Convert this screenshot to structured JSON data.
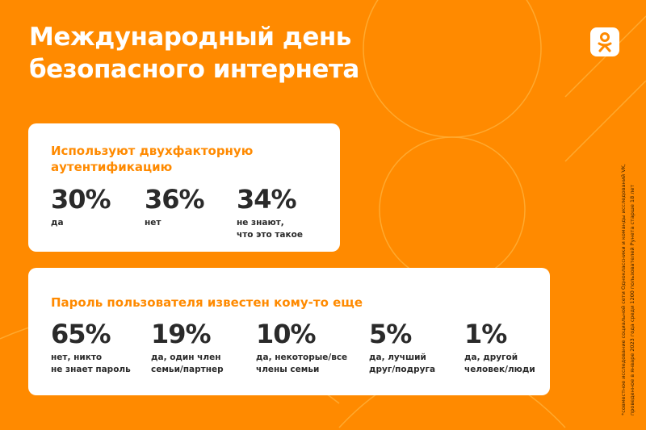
{
  "title": "Международный день безопасного интернета",
  "logo": "odnoklassniki-logo",
  "card1": {
    "heading": "Используют двухфакторную аутентификацию",
    "stats": [
      {
        "value": "30%",
        "label": "да"
      },
      {
        "value": "36%",
        "label": "нет"
      },
      {
        "value": "34%",
        "label": "не знают,\nчто это такое"
      }
    ]
  },
  "card2": {
    "heading": "Пароль пользователя известен кому-то еще",
    "stats": [
      {
        "value": "65%",
        "label": "нет, никто\nне знает пароль"
      },
      {
        "value": "19%",
        "label": "да, один член\nсемьи/партнер"
      },
      {
        "value": "10%",
        "label": "да, некоторые/все\nчлены семьи"
      },
      {
        "value": "5%",
        "label": "да, лучший\nдруг/подруга"
      },
      {
        "value": "1%",
        "label": "да, другой\nчеловек/люди"
      }
    ]
  },
  "footnote": "*совместное исследование социальной сети Одноклассники и команды исследований VK,\nпроведенное в январе 2023 года среди 1200 пользователей Рунета старше 18 лет",
  "colors": {
    "background": "#ff8a00",
    "accent": "#ff8a00",
    "text": "#2a2a2a"
  }
}
